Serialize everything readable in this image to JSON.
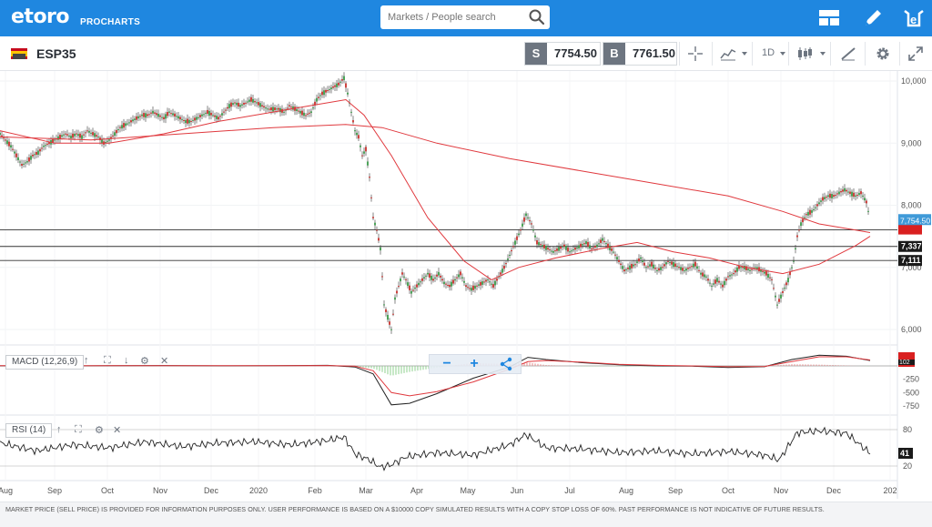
{
  "header": {
    "logo": "etoro",
    "logo_sub": "PROCHARTS",
    "search_placeholder": "Markets / People search"
  },
  "toolbar": {
    "symbol": "ESP35",
    "sell_tag": "S",
    "sell_price": "7754.50",
    "buy_tag": "B",
    "buy_price": "7761.50",
    "interval": "1D"
  },
  "price_axis": {
    "ticks": [
      "10,000",
      "9,000",
      "8,000",
      "7,000",
      "6,000"
    ],
    "current_price_label": "7,754.50",
    "level_labels": [
      "7,337",
      "7,111"
    ],
    "hidden_label": "7,603"
  },
  "time_axis": {
    "labels": [
      "Aug",
      "Sep",
      "Oct",
      "Nov",
      "Dec",
      "2020",
      "Feb",
      "Mar",
      "Apr",
      "May",
      "Jun",
      "Jul",
      "Aug",
      "Sep",
      "Oct",
      "Nov",
      "Dec",
      "202"
    ]
  },
  "macd": {
    "label": "MACD (12,26,9)",
    "ticks": [
      "-250",
      "-500",
      "-750"
    ],
    "value_label": "102"
  },
  "rsi": {
    "label": "RSI (14)",
    "ticks": [
      "80",
      "20"
    ],
    "value_label": "41"
  },
  "disclaimer": "MARKET PRICE (SELL PRICE) IS PROVIDED FOR INFORMATION PURPOSES ONLY. USER PERFORMANCE IS BASED ON A $10000 COPY SIMULATED RESULTS WITH A COPY STOP LOSS OF 60%. PAST PERFORMANCE IS NOT INDICATIVE OF FUTURE RESULTS.",
  "chart_data": {
    "type": "candlestick",
    "symbol": "ESP35",
    "price_range": [
      5800,
      10100
    ],
    "close_path": [
      [
        0,
        9150
      ],
      [
        6,
        9050
      ],
      [
        12,
        8950
      ],
      [
        18,
        8800
      ],
      [
        24,
        8650
      ],
      [
        30,
        8700
      ],
      [
        36,
        8800
      ],
      [
        42,
        8850
      ],
      [
        48,
        8950
      ],
      [
        54,
        9000
      ],
      [
        60,
        9050
      ],
      [
        66,
        9100
      ],
      [
        72,
        9150
      ],
      [
        78,
        9100
      ],
      [
        84,
        9150
      ],
      [
        90,
        9100
      ],
      [
        96,
        9200
      ],
      [
        102,
        9150
      ],
      [
        108,
        9100
      ],
      [
        114,
        9000
      ],
      [
        120,
        9050
      ],
      [
        126,
        9150
      ],
      [
        132,
        9250
      ],
      [
        138,
        9300
      ],
      [
        144,
        9350
      ],
      [
        150,
        9400
      ],
      [
        156,
        9450
      ],
      [
        162,
        9450
      ],
      [
        168,
        9500
      ],
      [
        174,
        9450
      ],
      [
        180,
        9400
      ],
      [
        186,
        9500
      ],
      [
        192,
        9450
      ],
      [
        198,
        9400
      ],
      [
        204,
        9350
      ],
      [
        210,
        9350
      ],
      [
        216,
        9400
      ],
      [
        222,
        9450
      ],
      [
        228,
        9500
      ],
      [
        234,
        9450
      ],
      [
        240,
        9400
      ],
      [
        246,
        9500
      ],
      [
        252,
        9600
      ],
      [
        258,
        9650
      ],
      [
        264,
        9600
      ],
      [
        270,
        9650
      ],
      [
        276,
        9700
      ],
      [
        282,
        9650
      ],
      [
        288,
        9600
      ],
      [
        294,
        9550
      ],
      [
        300,
        9550
      ],
      [
        306,
        9550
      ],
      [
        312,
        9500
      ],
      [
        318,
        9600
      ],
      [
        324,
        9550
      ],
      [
        330,
        9500
      ],
      [
        336,
        9450
      ],
      [
        342,
        9500
      ],
      [
        348,
        9700
      ],
      [
        354,
        9800
      ],
      [
        360,
        9850
      ],
      [
        366,
        9900
      ],
      [
        372,
        9950
      ],
      [
        378,
        10050
      ],
      [
        382,
        9800
      ],
      [
        386,
        9500
      ],
      [
        390,
        9200
      ],
      [
        394,
        9100
      ],
      [
        398,
        8800
      ],
      [
        402,
        8900
      ],
      [
        406,
        8450
      ],
      [
        410,
        7800
      ],
      [
        414,
        7600
      ],
      [
        418,
        7300
      ],
      [
        422,
        6400
      ],
      [
        426,
        6200
      ],
      [
        430,
        6000
      ],
      [
        434,
        6500
      ],
      [
        438,
        6700
      ],
      [
        442,
        6900
      ],
      [
        446,
        6800
      ],
      [
        452,
        6600
      ],
      [
        458,
        6700
      ],
      [
        464,
        6800
      ],
      [
        470,
        6900
      ],
      [
        476,
        6800
      ],
      [
        482,
        6900
      ],
      [
        488,
        6750
      ],
      [
        494,
        6700
      ],
      [
        500,
        6800
      ],
      [
        506,
        6900
      ],
      [
        512,
        6700
      ],
      [
        518,
        6650
      ],
      [
        524,
        6700
      ],
      [
        530,
        6750
      ],
      [
        536,
        6800
      ],
      [
        542,
        6700
      ],
      [
        548,
        6850
      ],
      [
        554,
        7000
      ],
      [
        560,
        7200
      ],
      [
        566,
        7400
      ],
      [
        572,
        7600
      ],
      [
        578,
        7850
      ],
      [
        584,
        7700
      ],
      [
        590,
        7400
      ],
      [
        596,
        7350
      ],
      [
        602,
        7300
      ],
      [
        608,
        7250
      ],
      [
        614,
        7300
      ],
      [
        620,
        7350
      ],
      [
        626,
        7250
      ],
      [
        632,
        7300
      ],
      [
        638,
        7350
      ],
      [
        644,
        7400
      ],
      [
        650,
        7300
      ],
      [
        656,
        7350
      ],
      [
        662,
        7450
      ],
      [
        668,
        7350
      ],
      [
        674,
        7250
      ],
      [
        680,
        7100
      ],
      [
        686,
        6950
      ],
      [
        692,
        7000
      ],
      [
        698,
        7050
      ],
      [
        704,
        7150
      ],
      [
        710,
        7000
      ],
      [
        716,
        7050
      ],
      [
        722,
        6950
      ],
      [
        728,
        7000
      ],
      [
        734,
        7100
      ],
      [
        740,
        7050
      ],
      [
        746,
        7000
      ],
      [
        752,
        6950
      ],
      [
        758,
        7000
      ],
      [
        764,
        7050
      ],
      [
        770,
        6900
      ],
      [
        776,
        6850
      ],
      [
        782,
        6700
      ],
      [
        788,
        6800
      ],
      [
        794,
        6700
      ],
      [
        800,
        6850
      ],
      [
        806,
        6900
      ],
      [
        812,
        7000
      ],
      [
        818,
        7000
      ],
      [
        824,
        6950
      ],
      [
        830,
        7000
      ],
      [
        836,
        6950
      ],
      [
        842,
        6900
      ],
      [
        848,
        6800
      ],
      [
        854,
        6400
      ],
      [
        860,
        6600
      ],
      [
        866,
        6800
      ],
      [
        872,
        7100
      ],
      [
        876,
        7500
      ],
      [
        880,
        7700
      ],
      [
        886,
        7850
      ],
      [
        892,
        7900
      ],
      [
        898,
        8000
      ],
      [
        904,
        8100
      ],
      [
        910,
        8150
      ],
      [
        916,
        8150
      ],
      [
        922,
        8200
      ],
      [
        928,
        8250
      ],
      [
        934,
        8200
      ],
      [
        940,
        8150
      ],
      [
        946,
        8200
      ],
      [
        952,
        8050
      ],
      [
        956,
        7754
      ]
    ],
    "ma_50_path": [
      [
        0,
        9200
      ],
      [
        60,
        9000
      ],
      [
        120,
        9000
      ],
      [
        180,
        9150
      ],
      [
        240,
        9350
      ],
      [
        300,
        9500
      ],
      [
        340,
        9600
      ],
      [
        380,
        9700
      ],
      [
        400,
        9450
      ],
      [
        430,
        8800
      ],
      [
        470,
        7800
      ],
      [
        510,
        7100
      ],
      [
        540,
        6800
      ],
      [
        570,
        7000
      ],
      [
        610,
        7150
      ],
      [
        660,
        7300
      ],
      [
        700,
        7400
      ],
      [
        740,
        7250
      ],
      [
        780,
        7150
      ],
      [
        820,
        7000
      ],
      [
        860,
        6900
      ],
      [
        900,
        7050
      ],
      [
        940,
        7350
      ],
      [
        956,
        7500
      ]
    ],
    "ma_200_path": [
      [
        0,
        9100
      ],
      [
        100,
        9050
      ],
      [
        200,
        9150
      ],
      [
        300,
        9250
      ],
      [
        380,
        9300
      ],
      [
        420,
        9250
      ],
      [
        480,
        9000
      ],
      [
        560,
        8750
      ],
      [
        640,
        8550
      ],
      [
        720,
        8350
      ],
      [
        800,
        8150
      ],
      [
        860,
        7900
      ],
      [
        900,
        7700
      ],
      [
        940,
        7600
      ],
      [
        956,
        7560
      ]
    ],
    "levels": [
      7603,
      7337,
      7111
    ],
    "macd_line": [
      [
        0,
        2
      ],
      [
        60,
        0
      ],
      [
        120,
        4
      ],
      [
        180,
        6
      ],
      [
        240,
        2
      ],
      [
        300,
        5
      ],
      [
        360,
        10
      ],
      [
        390,
        -20
      ],
      [
        410,
        -150
      ],
      [
        430,
        -730
      ],
      [
        450,
        -700
      ],
      [
        480,
        -520
      ],
      [
        520,
        -230
      ],
      [
        560,
        -20
      ],
      [
        580,
        160
      ],
      [
        600,
        120
      ],
      [
        640,
        60
      ],
      [
        680,
        20
      ],
      [
        720,
        0
      ],
      [
        760,
        -5
      ],
      [
        800,
        -30
      ],
      [
        840,
        -15
      ],
      [
        870,
        120
      ],
      [
        900,
        200
      ],
      [
        930,
        180
      ],
      [
        956,
        100
      ]
    ],
    "signal_line": [
      [
        0,
        3
      ],
      [
        60,
        2
      ],
      [
        120,
        3
      ],
      [
        180,
        4
      ],
      [
        240,
        3
      ],
      [
        300,
        4
      ],
      [
        360,
        7
      ],
      [
        390,
        -5
      ],
      [
        410,
        -90
      ],
      [
        430,
        -500
      ],
      [
        450,
        -560
      ],
      [
        480,
        -480
      ],
      [
        520,
        -300
      ],
      [
        560,
        -60
      ],
      [
        580,
        80
      ],
      [
        600,
        100
      ],
      [
        640,
        70
      ],
      [
        680,
        30
      ],
      [
        720,
        10
      ],
      [
        760,
        0
      ],
      [
        800,
        -15
      ],
      [
        840,
        -10
      ],
      [
        870,
        80
      ],
      [
        900,
        170
      ],
      [
        930,
        170
      ],
      [
        956,
        110
      ]
    ],
    "rsi_line": [
      [
        0,
        58
      ],
      [
        40,
        45
      ],
      [
        80,
        55
      ],
      [
        120,
        50
      ],
      [
        160,
        60
      ],
      [
        200,
        52
      ],
      [
        240,
        58
      ],
      [
        280,
        60
      ],
      [
        320,
        55
      ],
      [
        360,
        62
      ],
      [
        378,
        68
      ],
      [
        390,
        40
      ],
      [
        406,
        30
      ],
      [
        418,
        18
      ],
      [
        430,
        22
      ],
      [
        446,
        35
      ],
      [
        480,
        42
      ],
      [
        520,
        38
      ],
      [
        560,
        55
      ],
      [
        578,
        72
      ],
      [
        600,
        50
      ],
      [
        640,
        48
      ],
      [
        680,
        42
      ],
      [
        720,
        45
      ],
      [
        760,
        40
      ],
      [
        800,
        44
      ],
      [
        840,
        38
      ],
      [
        856,
        30
      ],
      [
        876,
        75
      ],
      [
        900,
        78
      ],
      [
        930,
        74
      ],
      [
        956,
        41
      ]
    ]
  }
}
